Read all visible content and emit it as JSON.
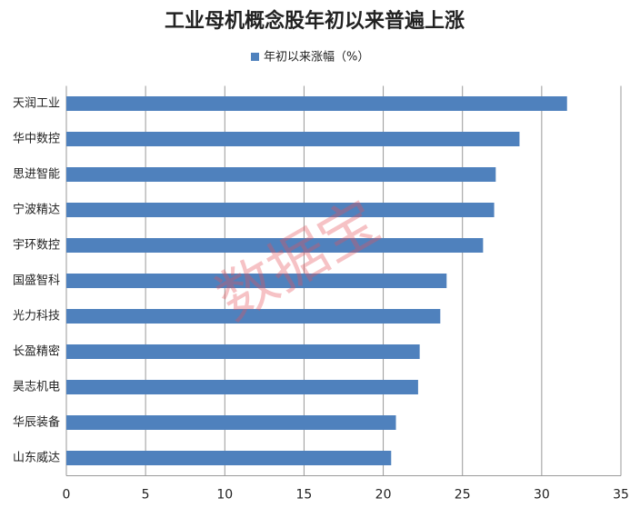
{
  "chart_data": {
    "type": "barh",
    "title": "工业母机概念股年初以来普遍上涨",
    "watermark": "数据宝",
    "categories": [
      "天润工业",
      "华中数控",
      "思进智能",
      "宁波精达",
      "宇环数控",
      "国盛智科",
      "光力科技",
      "长盈精密",
      "昊志机电",
      "华辰装备",
      "山东威达"
    ],
    "series": [
      {
        "name": "年初以来涨幅（%）",
        "color": "#4f81bd",
        "values": [
          31.6,
          28.6,
          27.1,
          27.0,
          26.3,
          24.0,
          23.6,
          22.3,
          22.2,
          20.8,
          20.5
        ]
      }
    ],
    "xlim": [
      0,
      35
    ],
    "xticks": [
      0,
      5,
      10,
      15,
      20,
      25,
      30,
      35
    ],
    "grid": true,
    "legend": "top"
  }
}
